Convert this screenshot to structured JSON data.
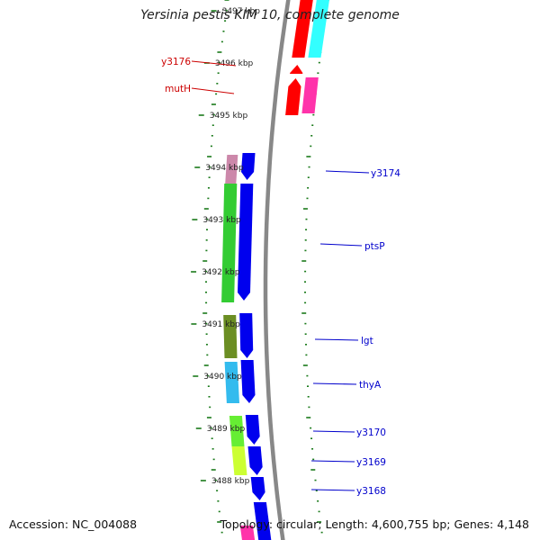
{
  "title": "Yersinia pestis KIM 10, complete genome",
  "accession": {
    "label": "Accession:",
    "value": "NC_004088"
  },
  "summary": {
    "topology_label": "Topology:",
    "topology": "circular",
    "length_label": "Length:",
    "length": "4,600,755 bp",
    "genes_label": "Genes:",
    "genes": "4,148"
  },
  "colors": {
    "backbone": "#888888",
    "tick": "#1a7a1a",
    "forward_label": "#cc0000",
    "reverse_label": "#0000cc"
  },
  "scale": {
    "unit": "kbp",
    "ticks": [
      {
        "kbp": 3497,
        "text": "3497 kbp"
      },
      {
        "kbp": 3496,
        "text": "3496 kbp"
      },
      {
        "kbp": 3495,
        "text": "3495 kbp"
      },
      {
        "kbp": 3494,
        "text": "3494 kbp"
      },
      {
        "kbp": 3493,
        "text": "3493 kbp"
      },
      {
        "kbp": 3492,
        "text": "3492 kbp"
      },
      {
        "kbp": 3491,
        "text": "3491 kbp"
      },
      {
        "kbp": 3490,
        "text": "3490 kbp"
      },
      {
        "kbp": 3489,
        "text": "3489 kbp"
      },
      {
        "kbp": 3488,
        "text": "3488 kbp"
      }
    ]
  },
  "genes": [
    {
      "name": "y3176",
      "strand": "forward",
      "labeled": true,
      "color": "#ff0000"
    },
    {
      "name": "mutH",
      "strand": "forward",
      "labeled": true,
      "color": "#ff0000"
    },
    {
      "name": "y3174",
      "strand": "reverse",
      "labeled": true,
      "color": "#0000ee"
    },
    {
      "name": "ptsP",
      "strand": "reverse",
      "labeled": true,
      "color": "#0000ee"
    },
    {
      "name": "lgt",
      "strand": "reverse",
      "labeled": true,
      "color": "#0000ee"
    },
    {
      "name": "thyA",
      "strand": "reverse",
      "labeled": true,
      "color": "#0000ee"
    },
    {
      "name": "y3170",
      "strand": "reverse",
      "labeled": true,
      "color": "#0000ee"
    },
    {
      "name": "y3169",
      "strand": "reverse",
      "labeled": true,
      "color": "#0000ee"
    },
    {
      "name": "y3168",
      "strand": "reverse",
      "labeled": true,
      "color": "#0000ee"
    }
  ]
}
